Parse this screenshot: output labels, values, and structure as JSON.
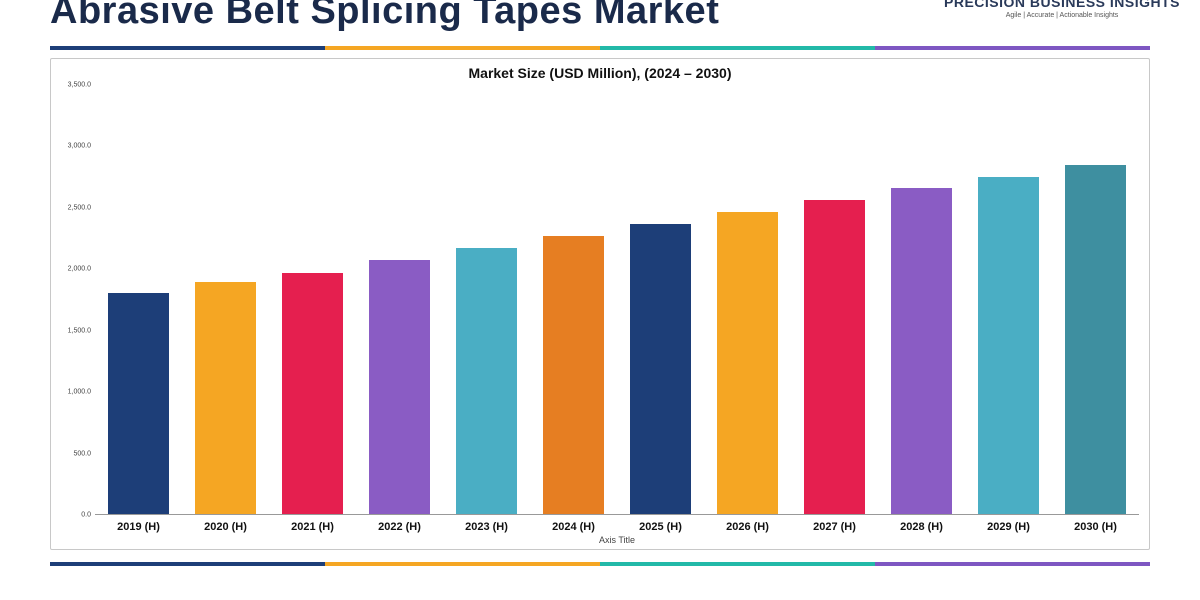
{
  "header": {
    "title": "Abrasive Belt Splicing Tapes Market",
    "logo_main": "PRECISION BUSINESS INSIGHTS",
    "logo_tag": "Agile | Accurate | Actionable Insights"
  },
  "rule_colors": [
    "#1d3e78",
    "#f5a623",
    "#22b9a8",
    "#7e57c2"
  ],
  "chart": {
    "type": "bar",
    "title": "Market Size (USD Million), (2024 – 2030)",
    "x_title": "Axis Title",
    "ylim": [
      0,
      3500
    ],
    "ytick_step": 500,
    "yticks": [
      "0.0",
      "500.0",
      "1,000.0",
      "1,500.0",
      "2,000.0",
      "2,500.0",
      "3,000.0",
      "3,500.0"
    ],
    "categories": [
      "2019 (H)",
      "2020 (H)",
      "2021 (H)",
      "2022 (H)",
      "2023 (H)",
      "2024 (H)",
      "2025 (H)",
      "2026 (H)",
      "2027 (H)",
      "2028 (H)",
      "2029 (H)",
      "2030 (H)"
    ],
    "values": [
      1800,
      1890,
      1970,
      2070,
      2170,
      2270,
      2370,
      2460,
      2560,
      2660,
      2750,
      2850
    ],
    "bar_colors": [
      "#1d3e78",
      "#f5a623",
      "#e51f4f",
      "#8a5cc4",
      "#4aaec4",
      "#e67e22",
      "#1d3e78",
      "#f5a623",
      "#e51f4f",
      "#8a5cc4",
      "#4aaec4",
      "#3e8fa0"
    ],
    "bar_width": 0.7,
    "background_color": "#ffffff",
    "axis_line_color": "#999999",
    "label_fontsize": 11,
    "title_fontsize": 14
  }
}
